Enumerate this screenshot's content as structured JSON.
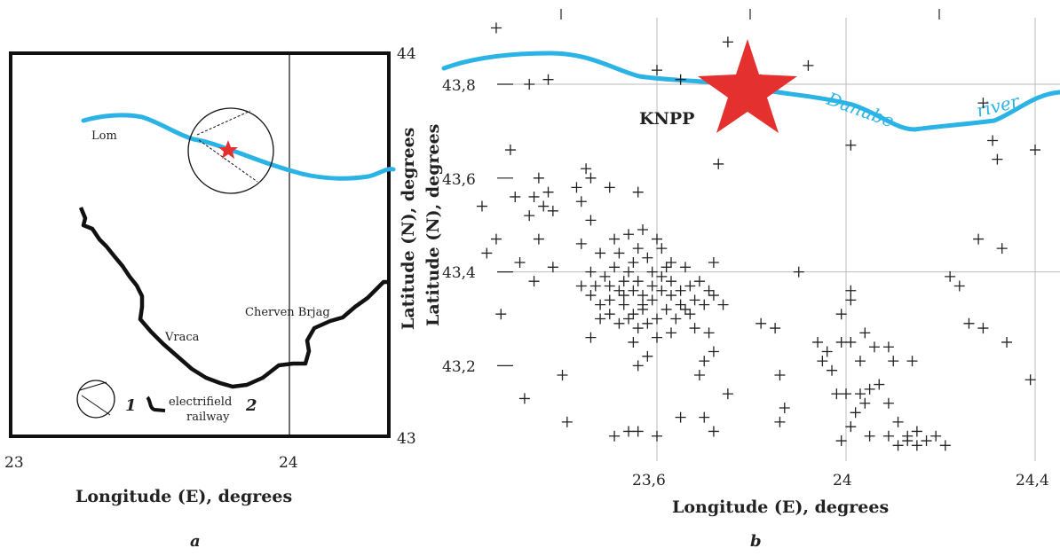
{
  "panel_a": {
    "caption": "a",
    "xlabel": "Longitude (E), degrees",
    "ylabel": "Latitude (N), degrees",
    "x_ticks": [
      "23",
      "24"
    ],
    "y_ticks": [
      "44",
      "43"
    ],
    "places": {
      "lom": "Lom",
      "vraca": "Vraca",
      "cherven": "Cherven Brjag"
    },
    "legend": {
      "item1": "1",
      "item2": "2",
      "railway_line1": "electrifield",
      "railway_line2": "railway"
    },
    "colors": {
      "river": "#2bb3e6",
      "railway": "#111111",
      "star": "#e53030"
    }
  },
  "panel_b": {
    "caption": "b",
    "xlabel": "Longitude (E), degrees",
    "ylabel": "Latitude (N), degrees",
    "x_ticks": [
      "23,6",
      "24",
      "24,4"
    ],
    "y_ticks": [
      "43,8",
      "43,6",
      "43,4",
      "43,2"
    ],
    "npp_label": "KNPP",
    "river_word1": "Danube",
    "river_word2": "river",
    "colors": {
      "river": "#2bb3e6",
      "star": "#e53030",
      "cross": "#222222",
      "grid": "#bbbbbb"
    }
  },
  "chart_data": {
    "type": "scatter",
    "xlabel": "Longitude (E), degrees",
    "ylabel": "Latitude (N), degrees",
    "xlim": [
      23.27,
      24.42
    ],
    "ylim": [
      43.06,
      43.93
    ],
    "grid": true,
    "npp": {
      "name": "KNPP",
      "x": 23.78,
      "y": 43.79
    },
    "events": [
      [
        23.26,
        43.92
      ],
      [
        23.37,
        43.81
      ],
      [
        23.33,
        43.8
      ],
      [
        23.75,
        43.89
      ],
      [
        23.92,
        43.84
      ],
      [
        23.6,
        43.83
      ],
      [
        23.65,
        43.81
      ],
      [
        23.82,
        43.81
      ],
      [
        24.29,
        43.76
      ],
      [
        24.01,
        43.67
      ],
      [
        24.31,
        43.68
      ],
      [
        24.32,
        43.64
      ],
      [
        24.4,
        43.66
      ],
      [
        23.73,
        43.63
      ],
      [
        23.29,
        43.66
      ],
      [
        23.3,
        43.56
      ],
      [
        23.35,
        43.6
      ],
      [
        23.34,
        43.56
      ],
      [
        23.37,
        43.57
      ],
      [
        23.33,
        43.52
      ],
      [
        23.36,
        43.54
      ],
      [
        23.38,
        43.53
      ],
      [
        23.23,
        43.54
      ],
      [
        23.43,
        43.58
      ],
      [
        23.45,
        43.62
      ],
      [
        23.46,
        43.6
      ],
      [
        23.44,
        43.55
      ],
      [
        23.46,
        43.51
      ],
      [
        23.5,
        43.58
      ],
      [
        23.56,
        43.57
      ],
      [
        23.35,
        43.47
      ],
      [
        23.31,
        43.42
      ],
      [
        23.34,
        43.38
      ],
      [
        23.26,
        43.47
      ],
      [
        23.24,
        43.44
      ],
      [
        23.27,
        43.31
      ],
      [
        23.32,
        43.13
      ],
      [
        23.4,
        43.18
      ],
      [
        23.41,
        43.08
      ],
      [
        23.38,
        43.41
      ],
      [
        23.44,
        43.46
      ],
      [
        23.46,
        43.4
      ],
      [
        23.48,
        43.44
      ],
      [
        23.47,
        43.37
      ],
      [
        23.51,
        43.47
      ],
      [
        23.54,
        43.48
      ],
      [
        23.57,
        43.49
      ],
      [
        23.6,
        43.47
      ],
      [
        23.61,
        43.45
      ],
      [
        23.58,
        43.43
      ],
      [
        23.63,
        43.42
      ],
      [
        23.66,
        43.41
      ],
      [
        23.54,
        43.4
      ],
      [
        23.56,
        43.38
      ],
      [
        23.52,
        43.36
      ],
      [
        23.5,
        43.34
      ],
      [
        23.53,
        43.33
      ],
      [
        23.55,
        43.31
      ],
      [
        23.57,
        43.32
      ],
      [
        23.59,
        43.34
      ],
      [
        23.61,
        43.36
      ],
      [
        23.63,
        43.38
      ],
      [
        23.65,
        43.36
      ],
      [
        23.67,
        43.37
      ],
      [
        23.69,
        43.38
      ],
      [
        23.71,
        43.36
      ],
      [
        23.68,
        43.34
      ],
      [
        23.7,
        43.33
      ],
      [
        23.72,
        43.35
      ],
      [
        23.74,
        43.33
      ],
      [
        23.66,
        43.32
      ],
      [
        23.64,
        43.3
      ],
      [
        23.62,
        43.32
      ],
      [
        23.6,
        43.3
      ],
      [
        23.58,
        43.29
      ],
      [
        23.56,
        43.28
      ],
      [
        23.54,
        43.3
      ],
      [
        23.52,
        43.29
      ],
      [
        23.5,
        43.31
      ],
      [
        23.48,
        43.33
      ],
      [
        23.46,
        43.35
      ],
      [
        23.44,
        43.37
      ],
      [
        23.49,
        43.39
      ],
      [
        23.51,
        43.41
      ],
      [
        23.53,
        43.38
      ],
      [
        23.55,
        43.36
      ],
      [
        23.57,
        43.35
      ],
      [
        23.59,
        43.37
      ],
      [
        23.61,
        43.39
      ],
      [
        23.63,
        43.35
      ],
      [
        23.65,
        43.33
      ],
      [
        23.67,
        43.31
      ],
      [
        23.55,
        43.42
      ],
      [
        23.52,
        43.44
      ],
      [
        23.56,
        43.45
      ],
      [
        23.59,
        43.4
      ],
      [
        23.62,
        43.41
      ],
      [
        23.57,
        43.33
      ],
      [
        23.53,
        43.35
      ],
      [
        23.5,
        43.37
      ],
      [
        23.48,
        43.3
      ],
      [
        23.46,
        43.26
      ],
      [
        23.55,
        43.25
      ],
      [
        23.6,
        43.26
      ],
      [
        23.63,
        43.27
      ],
      [
        23.68,
        43.28
      ],
      [
        23.71,
        43.27
      ],
      [
        23.58,
        43.22
      ],
      [
        23.56,
        43.2
      ],
      [
        23.7,
        43.21
      ],
      [
        23.72,
        43.23
      ],
      [
        23.69,
        43.18
      ],
      [
        23.75,
        43.14
      ],
      [
        23.65,
        43.09
      ],
      [
        23.7,
        43.09
      ],
      [
        23.72,
        43.06
      ],
      [
        23.51,
        43.05
      ],
      [
        23.56,
        43.06
      ],
      [
        23.6,
        43.05
      ],
      [
        23.54,
        43.06
      ],
      [
        23.72,
        43.42
      ],
      [
        23.82,
        43.29
      ],
      [
        23.85,
        43.28
      ],
      [
        23.86,
        43.18
      ],
      [
        23.87,
        43.11
      ],
      [
        23.86,
        43.08
      ],
      [
        23.9,
        43.4
      ],
      [
        23.94,
        43.25
      ],
      [
        23.96,
        43.23
      ],
      [
        23.95,
        43.21
      ],
      [
        23.97,
        43.19
      ],
      [
        23.99,
        43.25
      ],
      [
        24.01,
        43.25
      ],
      [
        23.98,
        43.14
      ],
      [
        24.0,
        43.14
      ],
      [
        24.03,
        43.14
      ],
      [
        24.04,
        43.12
      ],
      [
        24.02,
        43.1
      ],
      [
        24.01,
        43.07
      ],
      [
        24.05,
        43.05
      ],
      [
        23.99,
        43.04
      ],
      [
        24.03,
        43.21
      ],
      [
        24.04,
        43.27
      ],
      [
        24.06,
        43.24
      ],
      [
        24.09,
        43.24
      ],
      [
        24.1,
        43.21
      ],
      [
        24.07,
        43.16
      ],
      [
        24.05,
        43.15
      ],
      [
        24.09,
        43.12
      ],
      [
        24.11,
        43.08
      ],
      [
        24.13,
        43.05
      ],
      [
        24.15,
        43.06
      ],
      [
        24.09,
        43.05
      ],
      [
        24.11,
        43.03
      ],
      [
        24.13,
        43.04
      ],
      [
        24.15,
        43.03
      ],
      [
        24.17,
        43.04
      ],
      [
        24.19,
        43.05
      ],
      [
        24.21,
        43.03
      ],
      [
        24.14,
        43.21
      ],
      [
        24.22,
        43.39
      ],
      [
        24.24,
        43.37
      ],
      [
        24.26,
        43.29
      ],
      [
        24.29,
        43.28
      ],
      [
        24.34,
        43.25
      ],
      [
        24.28,
        43.47
      ],
      [
        24.33,
        43.45
      ],
      [
        24.39,
        43.17
      ],
      [
        24.01,
        43.36
      ],
      [
        24.01,
        43.34
      ],
      [
        23.99,
        43.31
      ]
    ]
  }
}
